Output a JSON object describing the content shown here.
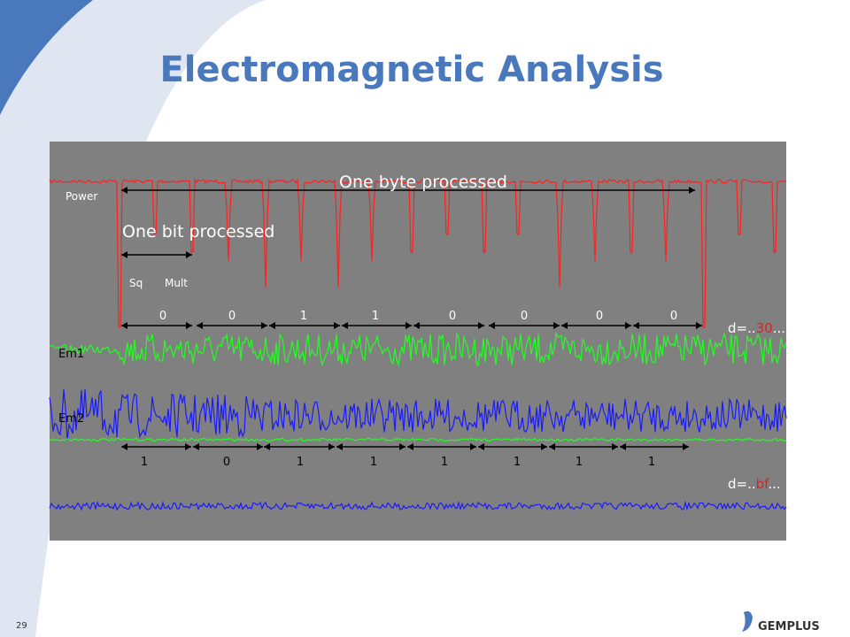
{
  "title": "Electromagnetic Analysis",
  "scope": {
    "power_label": "Power",
    "byte_label": "One byte processed",
    "bit_label": "One bit processed",
    "sq_label": "Sq",
    "mult_label": "Mult",
    "em1_label": "Em1",
    "em2_label": "Em2",
    "bits_top": [
      "0",
      "0",
      "1",
      "1",
      "0",
      "0",
      "0",
      "0"
    ],
    "bits_bottom": [
      "1",
      "0",
      "1",
      "1",
      "1",
      "1",
      "1",
      "1"
    ],
    "d_top": {
      "prefix": "d=..",
      "value": "30",
      "suffix": "..."
    },
    "d_bottom": {
      "prefix": "d=..",
      "value": "bf",
      "suffix": "..."
    }
  },
  "footer": {
    "page": "29",
    "logo": "GEMPLUS"
  }
}
